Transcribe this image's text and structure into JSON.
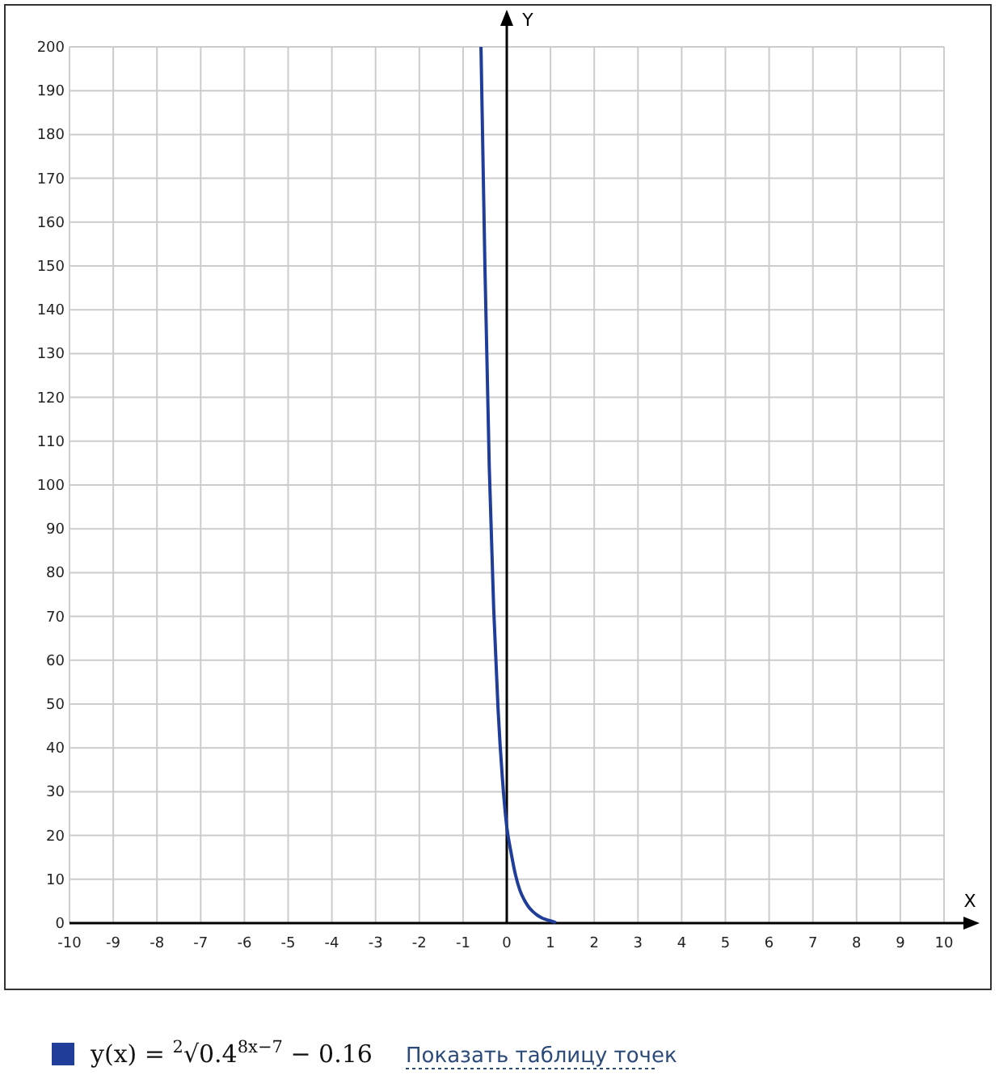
{
  "chart_data": {
    "type": "line",
    "xlabel": "X",
    "ylabel": "Y",
    "xlim": [
      -10,
      10
    ],
    "ylim": [
      0,
      200
    ],
    "xticks": [
      -10,
      -9,
      -8,
      -7,
      -6,
      -5,
      -4,
      -3,
      -2,
      -1,
      0,
      1,
      2,
      3,
      4,
      5,
      6,
      7,
      8,
      9,
      10
    ],
    "yticks": [
      0,
      10,
      20,
      30,
      40,
      50,
      60,
      70,
      80,
      90,
      100,
      110,
      120,
      130,
      140,
      150,
      160,
      170,
      180,
      190,
      200
    ],
    "grid": true,
    "legend": "bottom",
    "marker": "none",
    "line_style": "solid",
    "series": [
      {
        "name": "y(x) = $^{2}$√0.4$^{8x−7}$ − 0.16",
        "color": "#1f3d99",
        "x": [
          -0.59,
          -0.5,
          -0.4,
          -0.3,
          -0.2,
          -0.1,
          0,
          0.1,
          0.2,
          0.3,
          0.4,
          0.5,
          0.6,
          0.7,
          0.8,
          0.9,
          1,
          1.1,
          1.12
        ],
        "values": [
          200,
          150,
          104,
          72,
          49,
          33,
          22,
          16,
          11,
          7.5,
          5.3,
          3.7,
          2.6,
          1.8,
          1.2,
          0.8,
          0.5,
          0.2,
          0
        ]
      }
    ],
    "annotations": [
      "Показать таблицу точек"
    ]
  }
}
